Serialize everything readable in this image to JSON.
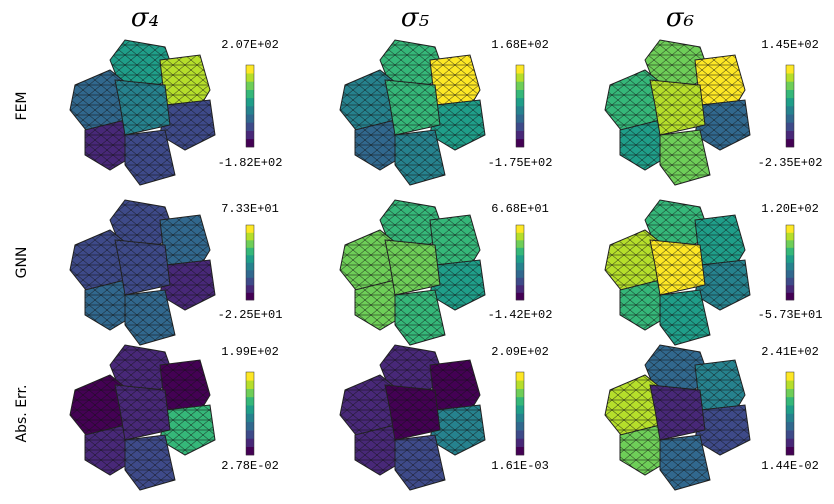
{
  "columns": [
    "σ₄",
    "σ₅",
    "σ₆"
  ],
  "rows": [
    {
      "label": "FEM",
      "cells": [
        {
          "max": "2.07E+02",
          "min": "-1.82E+02"
        },
        {
          "max": "1.68E+02",
          "min": "-1.75E+02"
        },
        {
          "max": "1.45E+02",
          "min": "-2.35E+02"
        }
      ]
    },
    {
      "label": "GNN",
      "cells": [
        {
          "max": "7.33E+01",
          "min": "-2.25E+01"
        },
        {
          "max": "6.68E+01",
          "min": "-1.42E+02"
        },
        {
          "max": "1.20E+02",
          "min": "-5.73E+01"
        }
      ]
    },
    {
      "label": "Abs. Err.",
      "cells": [
        {
          "max": "1.99E+02",
          "min": "2.78E-02"
        },
        {
          "max": "2.09E+02",
          "min": "1.61E-03"
        },
        {
          "max": "2.41E+02",
          "min": "1.44E-02"
        }
      ]
    }
  ]
}
